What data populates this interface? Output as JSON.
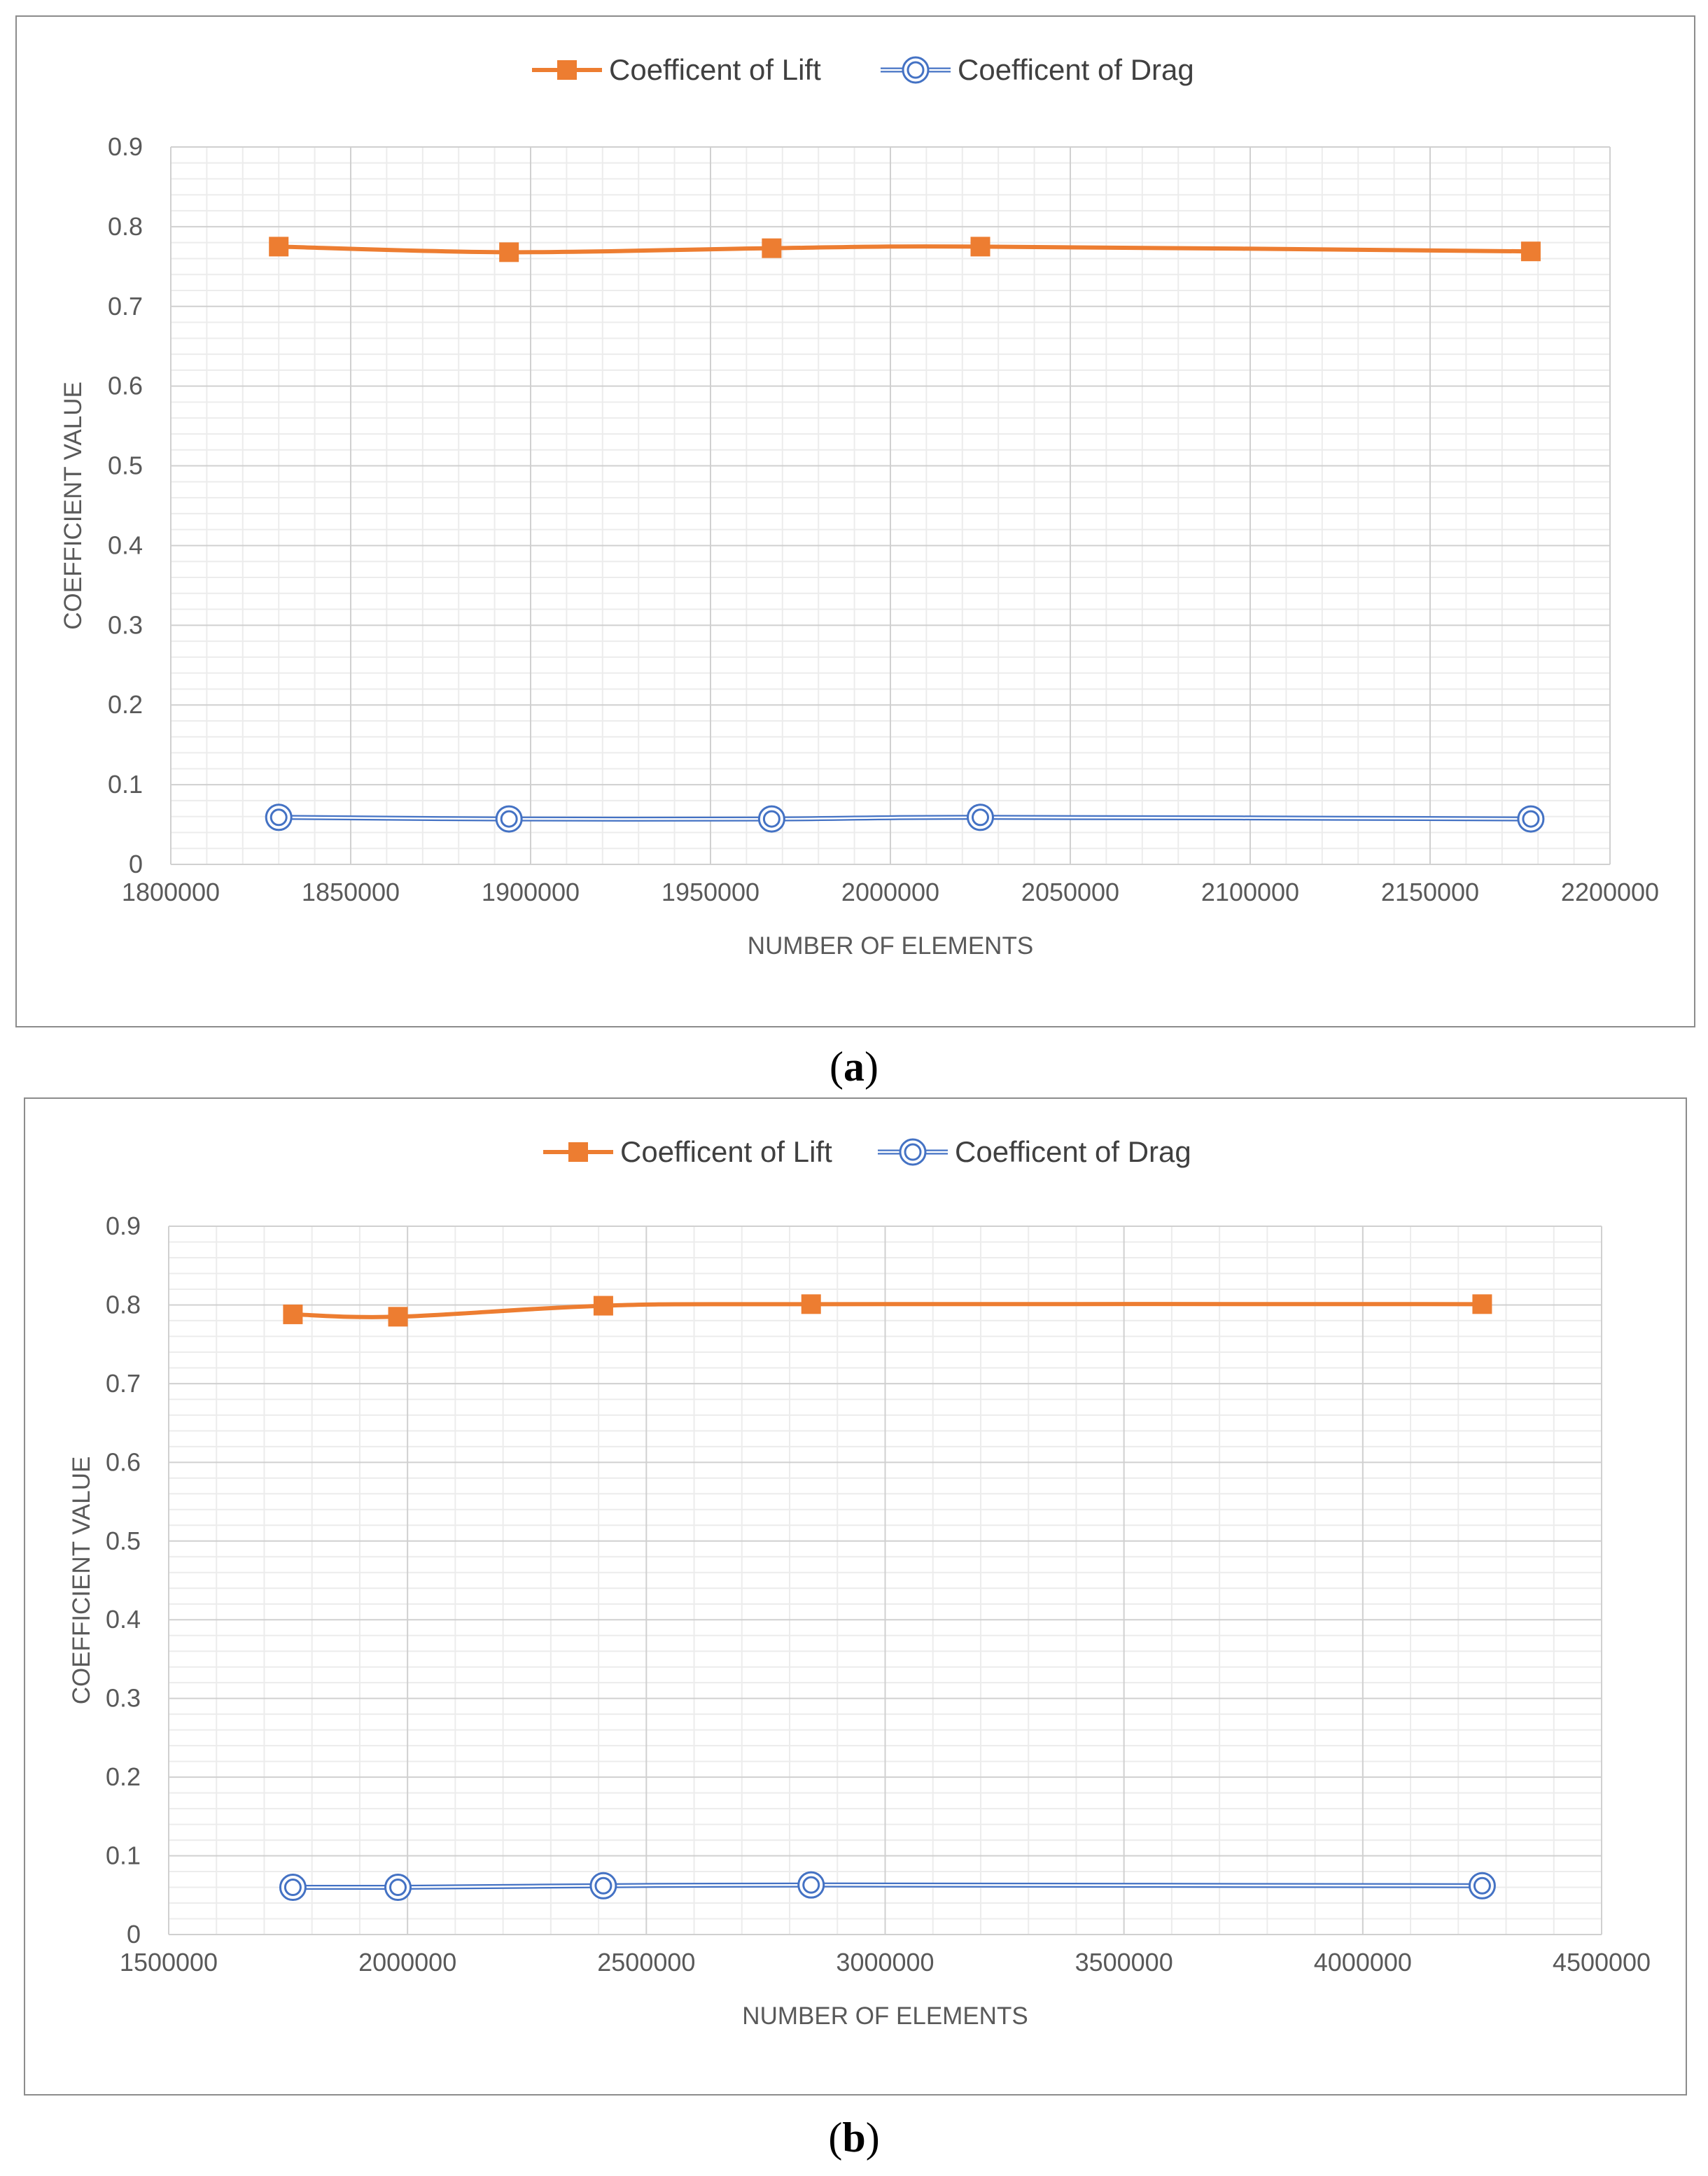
{
  "panels": [
    {
      "caption": "a",
      "chart_data": {
        "type": "line",
        "title": "",
        "xlabel": "NUMBER OF ELEMENTS",
        "ylabel": "COEFFICIENT VALUE",
        "xlim": [
          1800000,
          2200000
        ],
        "ylim": [
          0,
          0.9
        ],
        "x_ticks": [
          1800000,
          1850000,
          1900000,
          1950000,
          2000000,
          2050000,
          2100000,
          2150000,
          2200000
        ],
        "y_ticks": [
          0,
          0.1,
          0.2,
          0.3,
          0.4,
          0.5,
          0.6,
          0.7,
          0.8,
          0.9
        ],
        "x_tick_labels": [
          "1800000",
          "1850000",
          "1900000",
          "1950000",
          "2000000",
          "2050000",
          "2100000",
          "2150000",
          "2200000"
        ],
        "y_tick_labels": [
          "0",
          "0.1",
          "0.2",
          "0.3",
          "0.4",
          "0.5",
          "0.6",
          "0.7",
          "0.8",
          "0.9"
        ],
        "grid": true,
        "legend_position": "top-center",
        "series": [
          {
            "name": "Coefficent of Lift",
            "color": "#ED7D31",
            "marker": "square",
            "x": [
              1830000,
              1894000,
              1967000,
              2025000,
              2178000
            ],
            "y": [
              0.775,
              0.768,
              0.773,
              0.775,
              0.769
            ]
          },
          {
            "name": "Coefficent of Drag",
            "color": "#4472C4",
            "marker": "double-circle",
            "x": [
              1830000,
              1894000,
              1967000,
              2025000,
              2178000
            ],
            "y": [
              0.059,
              0.057,
              0.057,
              0.059,
              0.057
            ]
          }
        ]
      }
    },
    {
      "caption": "b",
      "chart_data": {
        "type": "line",
        "title": "",
        "xlabel": "NUMBER OF ELEMENTS",
        "ylabel": "COEFFICIENT VALUE",
        "xlim": [
          1500000,
          4500000
        ],
        "ylim": [
          0,
          0.9
        ],
        "x_ticks": [
          1500000,
          2000000,
          2500000,
          3000000,
          3500000,
          4000000,
          4500000
        ],
        "y_ticks": [
          0,
          0.1,
          0.2,
          0.3,
          0.4,
          0.5,
          0.6,
          0.7,
          0.8,
          0.9
        ],
        "x_tick_labels": [
          "1500000",
          "2000000",
          "2500000",
          "3000000",
          "3500000",
          "4000000",
          "4500000"
        ],
        "y_tick_labels": [
          "0",
          "0.1",
          "0.2",
          "0.3",
          "0.4",
          "0.5",
          "0.6",
          "0.7",
          "0.8",
          "0.9"
        ],
        "grid": true,
        "legend_position": "top-center",
        "series": [
          {
            "name": "Coefficent of Lift",
            "color": "#ED7D31",
            "marker": "square",
            "x": [
              1760000,
              1980000,
              2410000,
              2845000,
              4250000
            ],
            "y": [
              0.788,
              0.785,
              0.799,
              0.801,
              0.801
            ]
          },
          {
            "name": "Coefficent of Drag",
            "color": "#4472C4",
            "marker": "double-circle",
            "x": [
              1760000,
              1980000,
              2410000,
              2845000,
              4250000
            ],
            "y": [
              0.06,
              0.06,
              0.062,
              0.063,
              0.062
            ]
          }
        ]
      }
    }
  ]
}
